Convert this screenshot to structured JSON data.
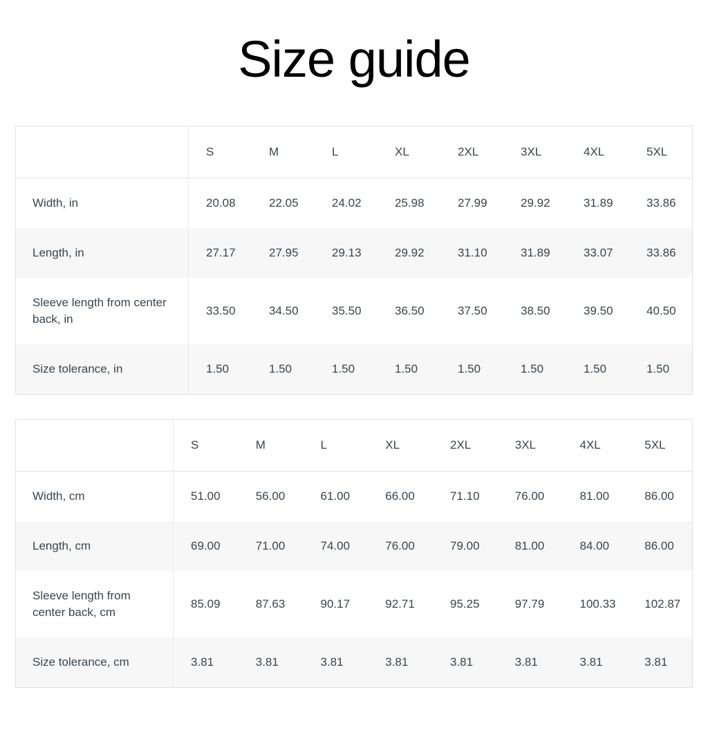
{
  "page": {
    "title": "Size guide"
  },
  "colors": {
    "background": "#ffffff",
    "title_text": "#000000",
    "table_text": "#3a444b",
    "table_border": "#e2e2e2",
    "stripe_row_background": "#f7f7f7"
  },
  "tables": [
    {
      "name": "size-table-inches",
      "unit": "in",
      "columns": [
        "S",
        "M",
        "L",
        "XL",
        "2XL",
        "3XL",
        "4XL",
        "5XL"
      ],
      "rows": [
        {
          "label": "Width, in",
          "values": [
            "20.08",
            "22.05",
            "24.02",
            "25.98",
            "27.99",
            "29.92",
            "31.89",
            "33.86"
          ]
        },
        {
          "label": "Length, in",
          "values": [
            "27.17",
            "27.95",
            "29.13",
            "29.92",
            "31.10",
            "31.89",
            "33.07",
            "33.86"
          ]
        },
        {
          "label": "Sleeve length from center back, in",
          "values": [
            "33.50",
            "34.50",
            "35.50",
            "36.50",
            "37.50",
            "38.50",
            "39.50",
            "40.50"
          ]
        },
        {
          "label": "Size tolerance, in",
          "values": [
            "1.50",
            "1.50",
            "1.50",
            "1.50",
            "1.50",
            "1.50",
            "1.50",
            "1.50"
          ]
        }
      ]
    },
    {
      "name": "size-table-centimeters",
      "unit": "cm",
      "columns": [
        "S",
        "M",
        "L",
        "XL",
        "2XL",
        "3XL",
        "4XL",
        "5XL"
      ],
      "rows": [
        {
          "label": "Width, cm",
          "values": [
            "51.00",
            "56.00",
            "61.00",
            "66.00",
            "71.10",
            "76.00",
            "81.00",
            "86.00"
          ]
        },
        {
          "label": "Length, cm",
          "values": [
            "69.00",
            "71.00",
            "74.00",
            "76.00",
            "79.00",
            "81.00",
            "84.00",
            "86.00"
          ]
        },
        {
          "label": "Sleeve length from center back, cm",
          "values": [
            "85.09",
            "87.63",
            "90.17",
            "92.71",
            "95.25",
            "97.79",
            "100.33",
            "102.87"
          ]
        },
        {
          "label": "Size tolerance, cm",
          "values": [
            "3.81",
            "3.81",
            "3.81",
            "3.81",
            "3.81",
            "3.81",
            "3.81",
            "3.81"
          ]
        }
      ]
    }
  ]
}
